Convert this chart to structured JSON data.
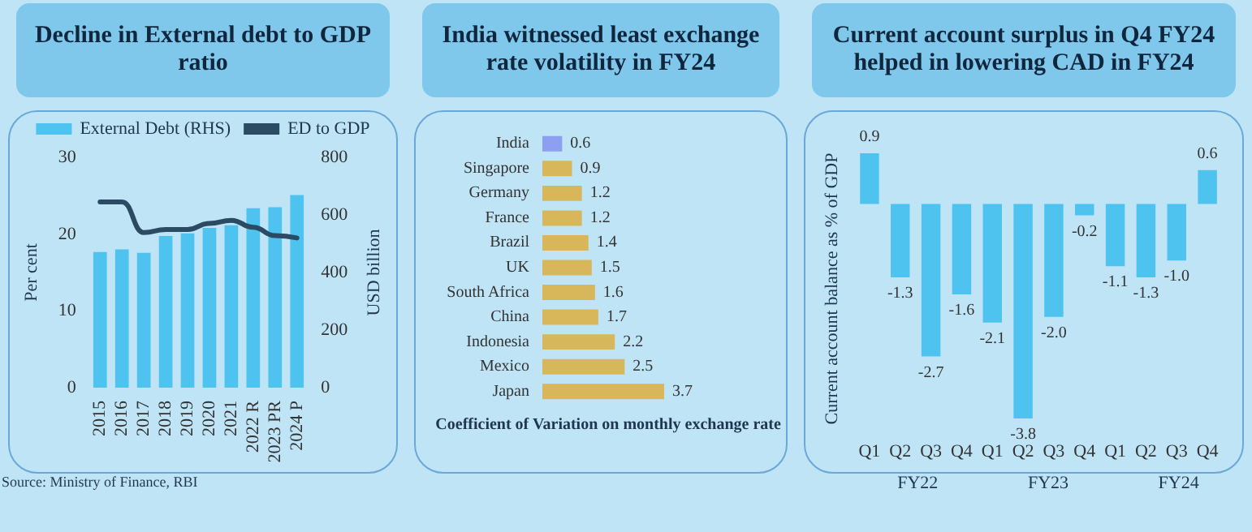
{
  "chart_data": [
    {
      "type": "bar",
      "title": "Decline in External debt to GDP ratio",
      "categories": [
        "2015",
        "2016",
        "2017",
        "2018",
        "2019",
        "2020",
        "2021",
        "2022 R",
        "2023 PR",
        "2024 P"
      ],
      "series": [
        {
          "name": "External Debt (RHS)",
          "axis": "y2",
          "color": "#4fc3ef",
          "values": [
            471,
            480,
            468,
            527,
            536,
            555,
            564,
            623,
            627,
            669
          ]
        },
        {
          "name": "ED to GDP",
          "type": "line",
          "color": "#2b4a63",
          "values": [
            24.2,
            24.2,
            20.2,
            20.6,
            20.6,
            21.4,
            21.8,
            20.9,
            19.8,
            19.5
          ]
        }
      ],
      "ylabel": "Per cent",
      "y2label": "USD billion",
      "ylim": [
        0,
        30
      ],
      "yticks": [
        0,
        10,
        20,
        30
      ],
      "y2lim": [
        0,
        800
      ],
      "y2ticks": [
        0,
        200,
        400,
        600,
        800
      ],
      "legend": "top",
      "marker": "none",
      "annotations": [
        "Source: Ministry of Finance, RBI"
      ]
    },
    {
      "type": "bar",
      "title": "India witnessed least exchange rate volatility in FY24",
      "orientation": "horizontal",
      "categories": [
        "India",
        "Singapore",
        "Germany",
        "France",
        "Brazil",
        "UK",
        "South Africa",
        "China",
        "Indonesia",
        "Mexico",
        "Japan"
      ],
      "values": [
        0.6,
        0.9,
        1.2,
        1.2,
        1.4,
        1.5,
        1.6,
        1.7,
        2.2,
        2.5,
        3.7
      ],
      "colors": [
        "#8c9ff0",
        "#d8b75a",
        "#d8b75a",
        "#d8b75a",
        "#d8b75a",
        "#d8b75a",
        "#d8b75a",
        "#d8b75a",
        "#d8b75a",
        "#d8b75a",
        "#d8b75a"
      ],
      "data_labels": true,
      "xlabel": "Coefficient of Variation on monthly exchange rate",
      "tick_labels": "y"
    },
    {
      "type": "bar",
      "title": "Current account surplus in Q4 FY24 helped in lowering CAD in FY24",
      "categories": [
        "Q1",
        "Q2",
        "Q3",
        "Q4",
        "Q1",
        "Q2",
        "Q3",
        "Q4",
        "Q1",
        "Q2",
        "Q3",
        "Q4"
      ],
      "values": [
        0.9,
        -1.3,
        -2.7,
        -1.6,
        -2.1,
        -3.8,
        -2.0,
        -0.2,
        -1.1,
        -1.3,
        -1.0,
        0.6
      ],
      "value_labels": [
        "0.9",
        "-1.3",
        "-2.7",
        "-1.6",
        "-2.1",
        "-3.8",
        "-2.0",
        "-0.2",
        "-1.1",
        "-1.3",
        "-1.0",
        "0.6"
      ],
      "color": "#4fc3ef",
      "ylabel": "Current account balance as % of GDP",
      "tick_labels": "x",
      "annotations": [
        "FY22",
        "FY23",
        "FY24"
      ]
    }
  ]
}
